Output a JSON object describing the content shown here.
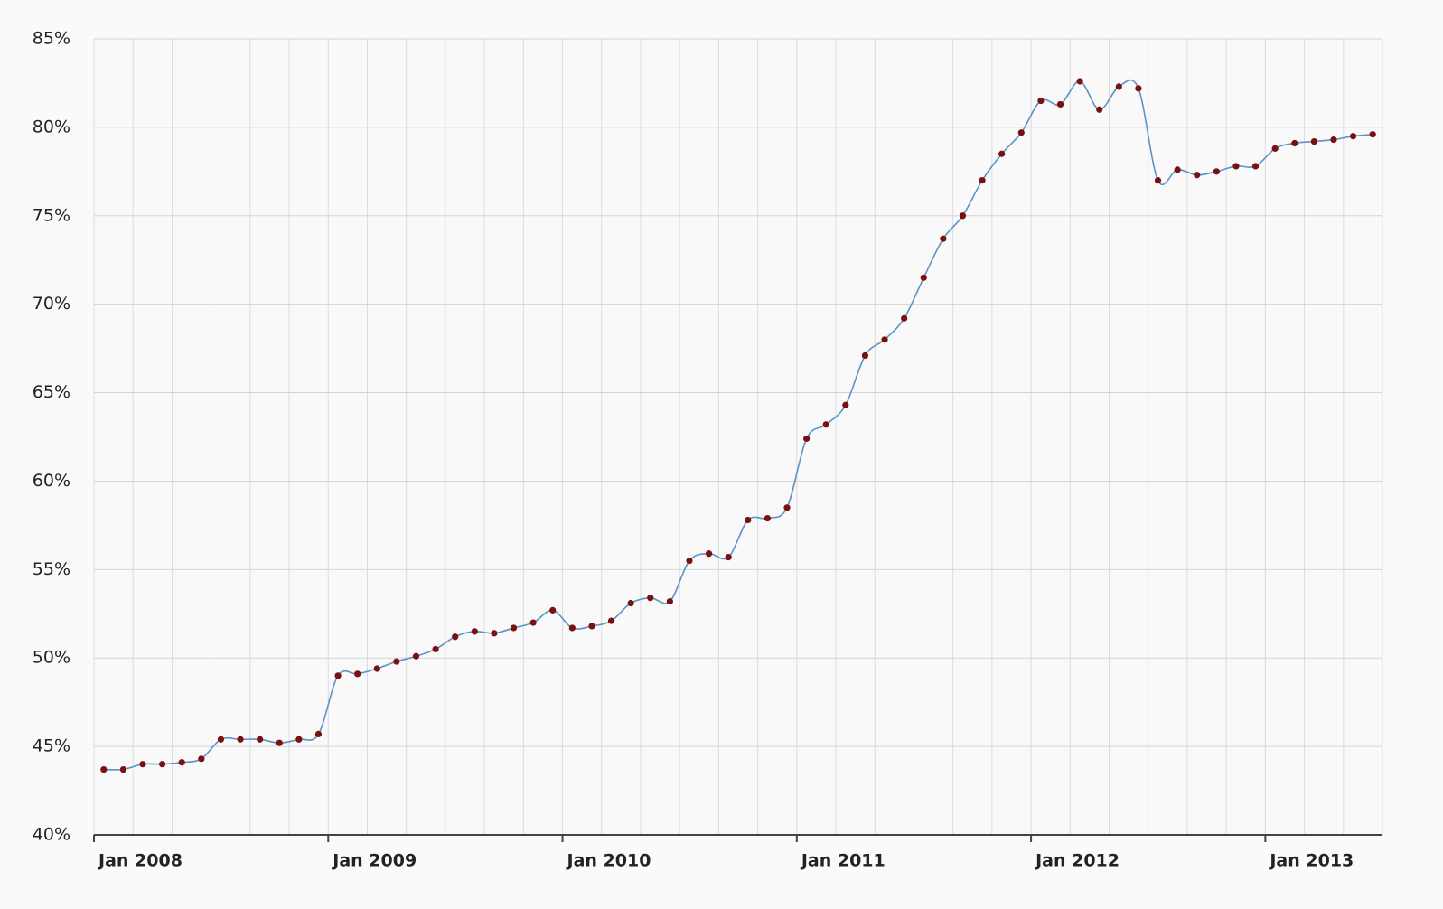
{
  "chart_data": {
    "type": "line",
    "x": [
      "2008-01",
      "2008-02",
      "2008-03",
      "2008-04",
      "2008-05",
      "2008-06",
      "2008-07",
      "2008-08",
      "2008-09",
      "2008-10",
      "2008-11",
      "2008-12",
      "2009-01",
      "2009-02",
      "2009-03",
      "2009-04",
      "2009-05",
      "2009-06",
      "2009-07",
      "2009-08",
      "2009-09",
      "2009-10",
      "2009-11",
      "2009-12",
      "2010-01",
      "2010-02",
      "2010-03",
      "2010-04",
      "2010-05",
      "2010-06",
      "2010-07",
      "2010-08",
      "2010-09",
      "2010-10",
      "2010-11",
      "2010-12",
      "2011-01",
      "2011-02",
      "2011-03",
      "2011-04",
      "2011-05",
      "2011-06",
      "2011-07",
      "2011-08",
      "2011-09",
      "2011-10",
      "2011-11",
      "2011-12",
      "2012-01",
      "2012-02",
      "2012-03",
      "2012-04",
      "2012-05",
      "2012-06",
      "2012-07",
      "2012-08",
      "2012-09",
      "2012-10",
      "2012-11",
      "2012-12",
      "2013-01",
      "2013-02",
      "2013-03",
      "2013-04",
      "2013-05",
      "2013-06"
    ],
    "series": [
      {
        "color": "#5b93c7",
        "marker_color": "#7a1010",
        "values": [
          43.7,
          43.7,
          44.0,
          44.0,
          44.1,
          44.3,
          45.4,
          45.4,
          45.4,
          45.2,
          45.4,
          45.7,
          49.0,
          49.1,
          49.4,
          49.8,
          50.1,
          50.5,
          51.2,
          51.5,
          51.4,
          51.7,
          52.0,
          52.7,
          51.7,
          51.8,
          52.1,
          53.1,
          53.4,
          53.2,
          55.5,
          55.9,
          55.7,
          57.8,
          57.9,
          58.5,
          62.4,
          63.2,
          64.3,
          67.1,
          68.0,
          69.2,
          71.5,
          73.7,
          75.0,
          77.0,
          78.5,
          79.7,
          81.5,
          81.3,
          82.6,
          81.0,
          82.3,
          82.2,
          77.0,
          77.6,
          77.3,
          77.5,
          77.8,
          77.8,
          78.8,
          79.1,
          79.2,
          79.3,
          79.5,
          79.6
        ]
      }
    ],
    "xlim": [
      "2008-01",
      "2013-07"
    ],
    "xticks": [
      {
        "value": "2008-01",
        "label": "Jan 2008"
      },
      {
        "value": "2009-01",
        "label": "Jan 2009"
      },
      {
        "value": "2010-01",
        "label": "Jan 2010"
      },
      {
        "value": "2011-01",
        "label": "Jan 2011"
      },
      {
        "value": "2012-01",
        "label": "Jan 2012"
      },
      {
        "value": "2013-01",
        "label": "Jan 2013"
      }
    ],
    "ylim": [
      40,
      85
    ],
    "yticks": [
      {
        "value": 40,
        "label": "40%"
      },
      {
        "value": 45,
        "label": "45%"
      },
      {
        "value": 50,
        "label": "50%"
      },
      {
        "value": 55,
        "label": "55%"
      },
      {
        "value": 60,
        "label": "60%"
      },
      {
        "value": 65,
        "label": "65%"
      },
      {
        "value": 70,
        "label": "70%"
      },
      {
        "value": 75,
        "label": "75%"
      },
      {
        "value": 80,
        "label": "80%"
      },
      {
        "value": 85,
        "label": "85%"
      }
    ],
    "grid": true
  }
}
